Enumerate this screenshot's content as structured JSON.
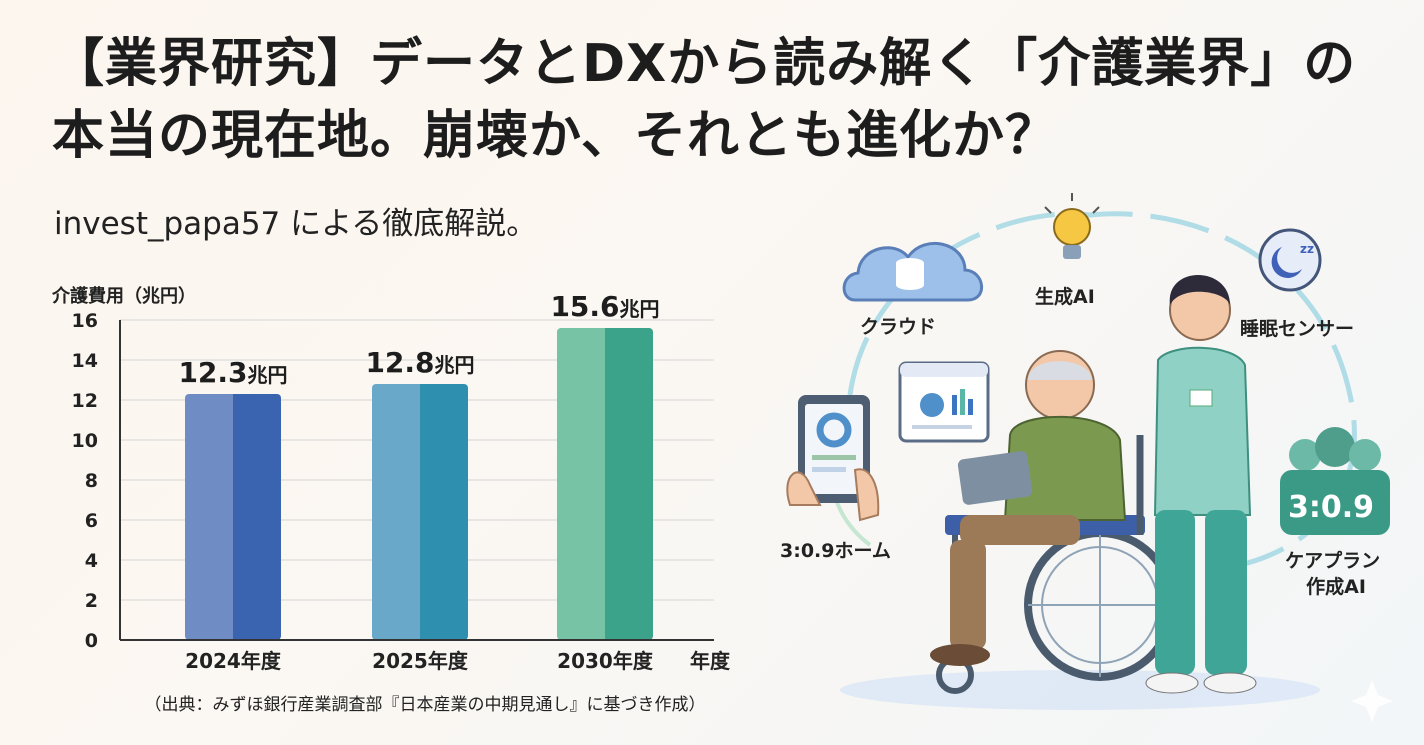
{
  "header": {
    "title": "【業界研究】データとDXから読み解く「介護業界」の本当の現在地。崩壊か、それとも進化か？",
    "subtitle": "invest_papa57 による徹底解説。"
  },
  "chart_data": {
    "type": "bar",
    "ylabel": "介護費用（兆円）",
    "xlabel": "年度",
    "categories": [
      "2024年度",
      "2025年度",
      "2030年度"
    ],
    "values": [
      12.3,
      12.8,
      15.6
    ],
    "data_labels": [
      "12.3兆円",
      "12.8兆円",
      "15.6兆円"
    ],
    "ylim": [
      0,
      16
    ],
    "yticks": [
      "0",
      "2",
      "4",
      "6",
      "8",
      "10",
      "12",
      "14",
      "16"
    ],
    "grid": true,
    "bar_colors": [
      [
        "#6f8cc4",
        "#3a64b0"
      ],
      [
        "#6aa8c9",
        "#2f8fae"
      ],
      [
        "#76c3a6",
        "#3aa389"
      ]
    ],
    "source": "（出典：みずほ銀行産業調査部『日本産業の中期見通し』に基づき作成）"
  },
  "illustration": {
    "labels": {
      "cloud": "クラウド",
      "ai": "生成AI",
      "sleep": "睡眠センサー",
      "home": "3:0.9ホーム",
      "careplan": "ケアプラン作成AI"
    },
    "gauge_text": "3:0.9",
    "colors": {
      "accent": "#2f8fae",
      "teal": "#5ab6a6",
      "blue": "#5a86c8"
    }
  }
}
